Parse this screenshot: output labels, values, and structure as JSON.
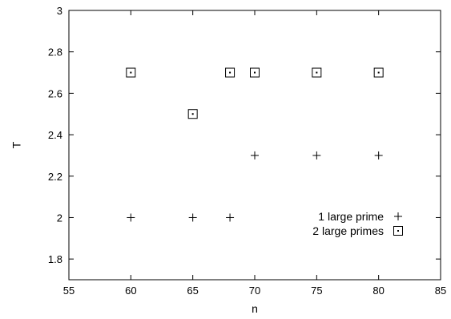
{
  "chart_data": {
    "type": "scatter",
    "xlabel": "n",
    "ylabel": "T",
    "xlim": [
      55,
      85
    ],
    "ylim": [
      1.7,
      3.0
    ],
    "x_ticks": [
      55,
      60,
      65,
      70,
      75,
      80,
      85
    ],
    "y_ticks": [
      1.8,
      2.0,
      2.2,
      2.4,
      2.6,
      2.8,
      3.0
    ],
    "x_tick_labels": [
      "55",
      "60",
      "65",
      "70",
      "75",
      "80",
      "85"
    ],
    "y_tick_labels": [
      "1.8",
      "2",
      "2.2",
      "2.4",
      "2.6",
      "2.8",
      "3"
    ],
    "grid": false,
    "legend_position": "inside-right",
    "series": [
      {
        "name": "1 large prime",
        "marker": "plus",
        "points": [
          {
            "x": 60,
            "y": 2.0
          },
          {
            "x": 65,
            "y": 2.0
          },
          {
            "x": 68,
            "y": 2.0
          },
          {
            "x": 70,
            "y": 2.3
          },
          {
            "x": 75,
            "y": 2.3
          },
          {
            "x": 80,
            "y": 2.3
          }
        ]
      },
      {
        "name": "2 large primes",
        "marker": "square-dot",
        "points": [
          {
            "x": 60,
            "y": 2.7
          },
          {
            "x": 65,
            "y": 2.5
          },
          {
            "x": 68,
            "y": 2.7
          },
          {
            "x": 70,
            "y": 2.7
          },
          {
            "x": 75,
            "y": 2.7
          },
          {
            "x": 80,
            "y": 2.7
          }
        ]
      }
    ]
  }
}
